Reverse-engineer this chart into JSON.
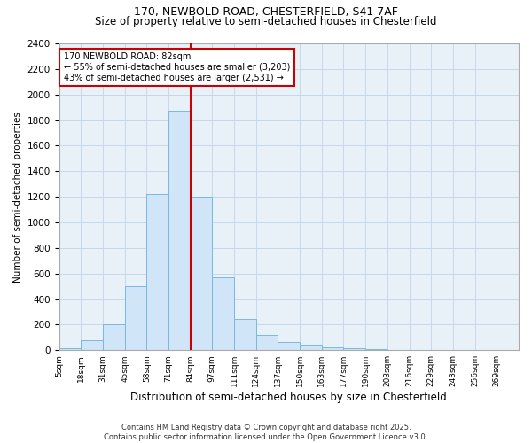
{
  "title1": "170, NEWBOLD ROAD, CHESTERFIELD, S41 7AF",
  "title2": "Size of property relative to semi-detached houses in Chesterfield",
  "xlabel": "Distribution of semi-detached houses by size in Chesterfield",
  "ylabel": "Number of semi-detached properties",
  "footnote": "Contains HM Land Registry data © Crown copyright and database right 2025.\nContains public sector information licensed under the Open Government Licence v3.0.",
  "bar_color": "#d0e5f7",
  "bar_edge_color": "#7ab8e0",
  "grid_color": "#c5d8ea",
  "background_color": "#e8f1f8",
  "vline_color": "#cc0000",
  "vline_x": 6,
  "annotation_box_color": "#cc0000",
  "annotation_text": "170 NEWBOLD ROAD: 82sqm\n← 55% of semi-detached houses are smaller (3,203)\n43% of semi-detached houses are larger (2,531) →",
  "categories": [
    "5sqm",
    "18sqm",
    "31sqm",
    "45sqm",
    "58sqm",
    "71sqm",
    "84sqm",
    "97sqm",
    "111sqm",
    "124sqm",
    "137sqm",
    "150sqm",
    "163sqm",
    "177sqm",
    "190sqm",
    "203sqm",
    "216sqm",
    "229sqm",
    "243sqm",
    "256sqm",
    "269sqm"
  ],
  "values": [
    15,
    75,
    200,
    500,
    1220,
    1870,
    1200,
    570,
    245,
    120,
    65,
    40,
    25,
    18,
    8,
    3,
    2,
    1,
    0,
    0,
    0
  ],
  "ylim": [
    0,
    2400
  ],
  "yticks": [
    0,
    200,
    400,
    600,
    800,
    1000,
    1200,
    1400,
    1600,
    1800,
    2000,
    2200,
    2400
  ],
  "n_bins": 21,
  "title1_fontsize": 9,
  "title2_fontsize": 8.5,
  "xlabel_fontsize": 8.5,
  "ylabel_fontsize": 7.5,
  "xtick_fontsize": 6.5,
  "ytick_fontsize": 7.5,
  "annotation_fontsize": 7,
  "footnote_fontsize": 6
}
